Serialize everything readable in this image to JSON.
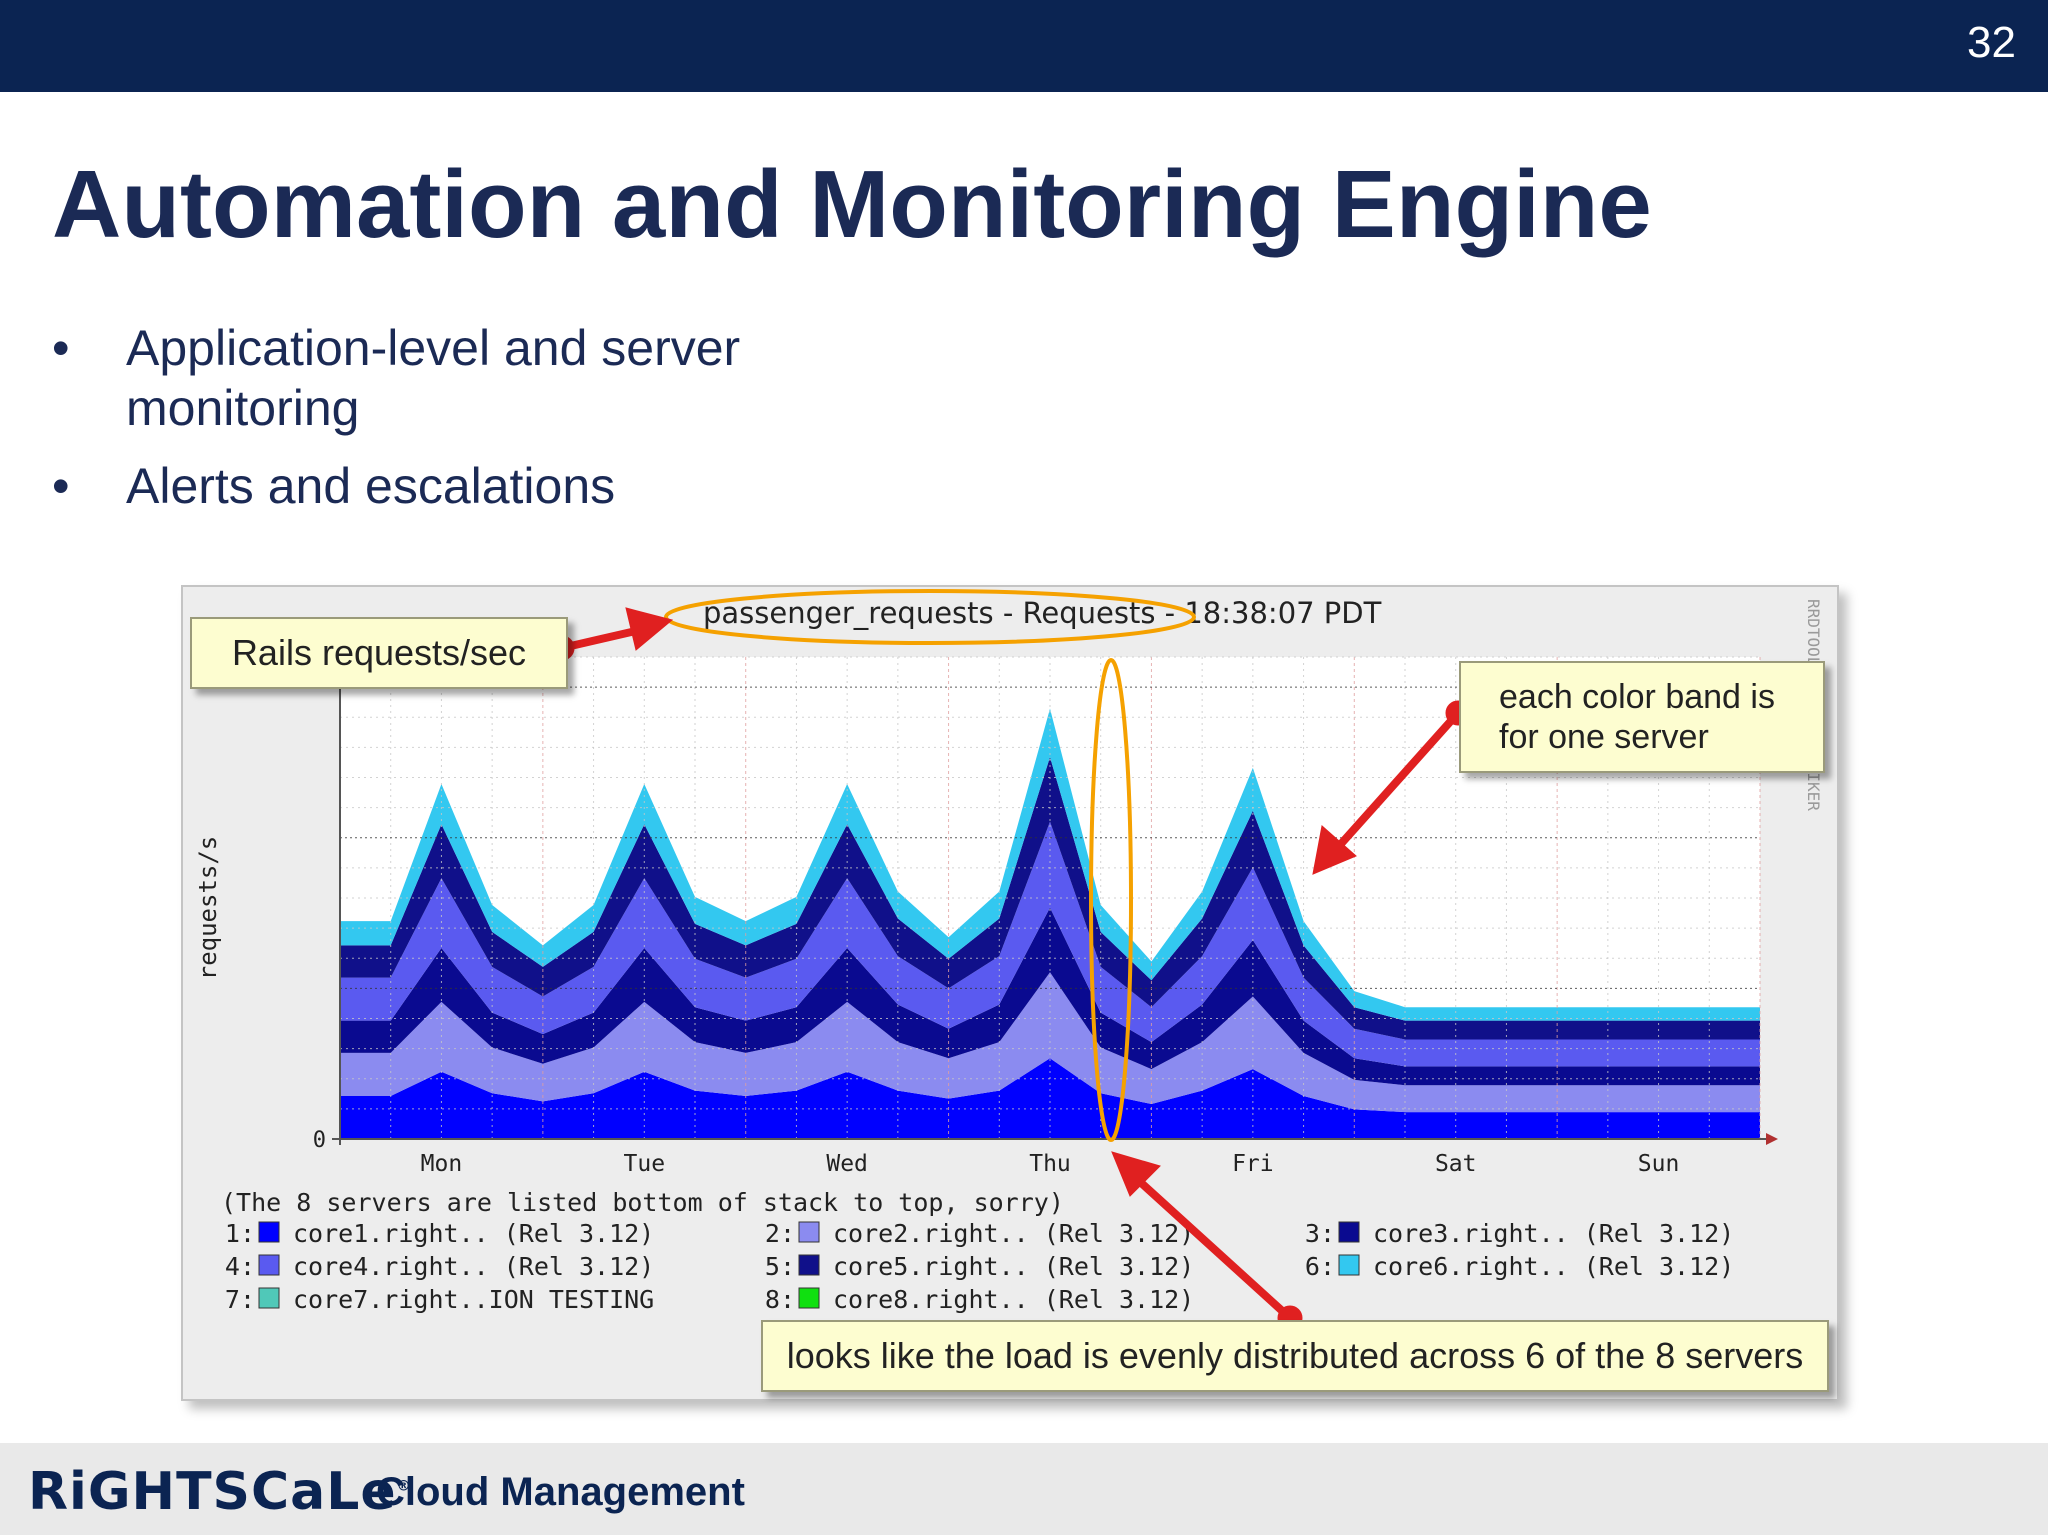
{
  "slide": {
    "page_number": "32",
    "title": "Automation and Monitoring Engine",
    "bullets": [
      "Application-level and server monitoring",
      "Alerts and escalations"
    ],
    "bullet_marker": "•",
    "footer_logo": "RiGHTSCaLe",
    "footer_logo_mark": "®",
    "footer_tagline": "Cloud Management",
    "colors": {
      "header_bg": "#0b2452",
      "title": "#1b2a55",
      "callout_bg": "#fdfdd0",
      "ellipse": "#f5a100",
      "arrow": "#e02020"
    }
  },
  "callouts": {
    "rails": "Rails requests/sec",
    "band": "each color band is for one server",
    "load": "looks like the load is evenly distributed across 6 of the 8 servers"
  },
  "chart_data": {
    "type": "area",
    "stacked": true,
    "title": "passenger_requests - Requests - 18:38:07 PDT",
    "ylabel": "requests/s",
    "watermark": "RRDTOOL / TOBI OETIKER",
    "ytick_labels": [
      "0"
    ],
    "categories": [
      "Mon",
      "Tue",
      "Wed",
      "Thu",
      "Fri",
      "Sat",
      "Sun"
    ],
    "legend_note": "(The 8 servers are listed bottom of stack to top, sorry)",
    "x": [
      0,
      0.25,
      0.5,
      0.75,
      1,
      1.25,
      1.5,
      1.75,
      2,
      2.25,
      2.5,
      2.75,
      3,
      3.25,
      3.5,
      3.75,
      4,
      4.25,
      4.5,
      4.75,
      5,
      5.25,
      5.5,
      5.75,
      6,
      6.25,
      6.5,
      6.75,
      7
    ],
    "grid": true,
    "series": [
      {
        "index": "1",
        "name": "core1.right.. (Rel 3.12)",
        "color": "#0000ff",
        "values": [
          1.6,
          1.6,
          2.5,
          1.7,
          1.4,
          1.7,
          2.5,
          1.8,
          1.6,
          1.8,
          2.5,
          1.8,
          1.5,
          1.8,
          3.0,
          1.7,
          1.3,
          1.8,
          2.6,
          1.6,
          1.1,
          1.0,
          1.0,
          1.0,
          1.0,
          1.0,
          1.0,
          1.0,
          1.0
        ]
      },
      {
        "index": "2",
        "name": "core2.right.. (Rel 3.12)",
        "color": "#8b8bf0",
        "values": [
          1.6,
          1.6,
          2.6,
          1.7,
          1.4,
          1.7,
          2.6,
          1.8,
          1.6,
          1.8,
          2.6,
          1.8,
          1.5,
          1.8,
          3.2,
          1.7,
          1.3,
          1.8,
          2.7,
          1.6,
          1.1,
          1.0,
          1.0,
          1.0,
          1.0,
          1.0,
          1.0,
          1.0,
          1.0
        ]
      },
      {
        "index": "3",
        "name": "core3.right.. (Rel 3.12)",
        "color": "#0a0a90",
        "values": [
          1.2,
          1.2,
          2.0,
          1.3,
          1.1,
          1.3,
          2.0,
          1.3,
          1.2,
          1.3,
          2.0,
          1.4,
          1.1,
          1.4,
          2.4,
          1.3,
          1.0,
          1.4,
          2.1,
          1.2,
          0.8,
          0.7,
          0.7,
          0.7,
          0.7,
          0.7,
          0.7,
          0.7,
          0.7
        ]
      },
      {
        "index": "4",
        "name": "core4.right.. (Rel 3.12)",
        "color": "#5a5af0",
        "values": [
          1.6,
          1.6,
          2.6,
          1.7,
          1.4,
          1.7,
          2.6,
          1.8,
          1.6,
          1.8,
          2.6,
          1.8,
          1.5,
          1.8,
          3.2,
          1.7,
          1.3,
          1.8,
          2.7,
          1.6,
          1.1,
          1.0,
          1.0,
          1.0,
          1.0,
          1.0,
          1.0,
          1.0,
          1.0
        ]
      },
      {
        "index": "5",
        "name": "core5.right.. (Rel 3.12)",
        "color": "#10108a",
        "values": [
          1.2,
          1.2,
          2.0,
          1.3,
          1.1,
          1.3,
          2.0,
          1.3,
          1.2,
          1.3,
          2.0,
          1.4,
          1.1,
          1.4,
          2.4,
          1.3,
          1.0,
          1.4,
          2.1,
          1.2,
          0.8,
          0.7,
          0.7,
          0.7,
          0.7,
          0.7,
          0.7,
          0.7,
          0.7
        ]
      },
      {
        "index": "6",
        "name": "core6.right.. (Rel 3.12)",
        "color": "#33c8f0",
        "values": [
          0.9,
          0.9,
          1.5,
          1.0,
          0.8,
          1.0,
          1.5,
          1.0,
          0.9,
          1.0,
          1.5,
          1.0,
          0.8,
          1.0,
          1.8,
          1.0,
          0.7,
          1.0,
          1.6,
          0.9,
          0.6,
          0.5,
          0.5,
          0.5,
          0.5,
          0.5,
          0.5,
          0.5,
          0.5
        ]
      },
      {
        "index": "7",
        "name": "core7.right..ION TESTING",
        "color": "#50c8b8",
        "values": [
          0,
          0,
          0,
          0,
          0,
          0,
          0,
          0,
          0,
          0,
          0,
          0,
          0,
          0,
          0,
          0,
          0,
          0,
          0,
          0,
          0,
          0,
          0,
          0,
          0,
          0,
          0,
          0,
          0
        ]
      },
      {
        "index": "8",
        "name": "core8.right.. (Rel 3.12)",
        "color": "#10e010",
        "values": [
          0,
          0,
          0,
          0,
          0,
          0,
          0,
          0,
          0,
          0,
          0,
          0,
          0,
          0,
          0,
          0,
          0,
          0,
          0,
          0,
          0,
          0,
          0,
          0,
          0,
          0,
          0,
          0,
          0
        ]
      }
    ]
  }
}
